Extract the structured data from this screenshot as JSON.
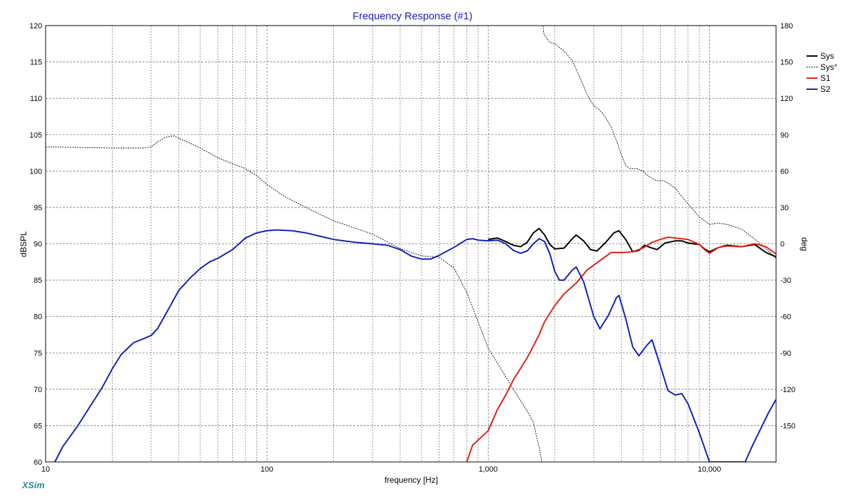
{
  "chart_data": {
    "type": "line",
    "title": "Frequency Response (#1)",
    "xlabel": "frequency [Hz]",
    "ylabel": "dBSPL",
    "y2label": "deg",
    "x_scale": "log",
    "xlim": [
      10,
      20000
    ],
    "ylim": [
      60,
      120
    ],
    "y2lim": [
      -180,
      180
    ],
    "grid": true,
    "legend_position": "top-right",
    "brand": "XSim",
    "x_ticks": [
      {
        "value": 10,
        "label": "10"
      },
      {
        "value": 100,
        "label": "100"
      },
      {
        "value": 1000,
        "label": "1,000"
      },
      {
        "value": 10000,
        "label": "10,000"
      }
    ],
    "y_ticks": [
      {
        "value": 120,
        "label": "120"
      },
      {
        "value": 115,
        "label": "115"
      },
      {
        "value": 110,
        "label": "110"
      },
      {
        "value": 105,
        "label": "105"
      },
      {
        "value": 100,
        "label": "100"
      },
      {
        "value": 95,
        "label": "95"
      },
      {
        "value": 90,
        "label": "90"
      },
      {
        "value": 85,
        "label": "85"
      },
      {
        "value": 80,
        "label": "80"
      },
      {
        "value": 75,
        "label": "75"
      },
      {
        "value": 70,
        "label": "70"
      },
      {
        "value": 65,
        "label": "65"
      },
      {
        "value": 60,
        "label": "60"
      }
    ],
    "y2_ticks": [
      {
        "value": 180,
        "label": "180"
      },
      {
        "value": 150,
        "label": "150"
      },
      {
        "value": 120,
        "label": "120"
      },
      {
        "value": 90,
        "label": "90"
      },
      {
        "value": 60,
        "label": "60"
      },
      {
        "value": 30,
        "label": "30"
      },
      {
        "value": 0,
        "label": "0"
      },
      {
        "value": -30,
        "label": "-30"
      },
      {
        "value": -60,
        "label": "-60"
      },
      {
        "value": -90,
        "label": "-90"
      },
      {
        "value": -120,
        "label": "-120"
      },
      {
        "value": -150,
        "label": "-150"
      }
    ],
    "series": [
      {
        "name": "Sys",
        "color": "#000000",
        "style": "solid",
        "axis": "left",
        "points": [
          [
            1000,
            90.6
          ],
          [
            1100,
            90.8
          ],
          [
            1200,
            90.3
          ],
          [
            1300,
            89.8
          ],
          [
            1400,
            89.6
          ],
          [
            1500,
            90.2
          ],
          [
            1600,
            91.5
          ],
          [
            1700,
            92.1
          ],
          [
            1800,
            91.2
          ],
          [
            1900,
            89.9
          ],
          [
            2000,
            89.3
          ],
          [
            2200,
            89.4
          ],
          [
            2400,
            90.7
          ],
          [
            2500,
            91.2
          ],
          [
            2700,
            90.4
          ],
          [
            2900,
            89.2
          ],
          [
            3100,
            89.0
          ],
          [
            3400,
            90.2
          ],
          [
            3700,
            91.5
          ],
          [
            3900,
            91.8
          ],
          [
            4200,
            90.5
          ],
          [
            4500,
            88.9
          ],
          [
            4800,
            89.1
          ],
          [
            5100,
            89.8
          ],
          [
            5400,
            89.5
          ],
          [
            5800,
            89.2
          ],
          [
            6300,
            90.1
          ],
          [
            7000,
            90.4
          ],
          [
            7500,
            90.4
          ],
          [
            8000,
            90.1
          ],
          [
            9000,
            89.9
          ],
          [
            9500,
            89.3
          ],
          [
            10000,
            88.9
          ],
          [
            11000,
            89.5
          ],
          [
            12000,
            89.8
          ],
          [
            14000,
            89.6
          ],
          [
            16000,
            89.9
          ],
          [
            18000,
            88.8
          ],
          [
            20000,
            88.2
          ]
        ]
      },
      {
        "name": "Sys°",
        "color": "#000000",
        "style": "dashed",
        "axis": "right",
        "points": [
          [
            10,
            80
          ],
          [
            20,
            79
          ],
          [
            28,
            79
          ],
          [
            30,
            80
          ],
          [
            32,
            84
          ],
          [
            35,
            88
          ],
          [
            38,
            89
          ],
          [
            40,
            87
          ],
          [
            45,
            83
          ],
          [
            50,
            79
          ],
          [
            60,
            71
          ],
          [
            70,
            66
          ],
          [
            80,
            62
          ],
          [
            90,
            56
          ],
          [
            100,
            49
          ],
          [
            120,
            39
          ],
          [
            150,
            30
          ],
          [
            200,
            19
          ],
          [
            300,
            8
          ],
          [
            400,
            -4
          ],
          [
            500,
            -10
          ],
          [
            600,
            -11
          ],
          [
            700,
            -20
          ],
          [
            800,
            -40
          ],
          [
            1000,
            -86
          ],
          [
            1300,
            -120
          ],
          [
            1500,
            -138
          ],
          [
            1600,
            -147
          ],
          [
            1650,
            -158
          ],
          [
            1700,
            -168
          ],
          [
            1750,
            -180
          ],
          [
            1770,
            180
          ],
          [
            1780,
            174
          ],
          [
            1800,
            172
          ],
          [
            1900,
            166
          ],
          [
            2000,
            165
          ],
          [
            2200,
            159
          ],
          [
            2400,
            151
          ],
          [
            2600,
            137
          ],
          [
            2800,
            123
          ],
          [
            3000,
            114
          ],
          [
            3200,
            110
          ],
          [
            3400,
            104
          ],
          [
            3600,
            96
          ],
          [
            3800,
            85
          ],
          [
            4000,
            73
          ],
          [
            4200,
            64
          ],
          [
            4400,
            62
          ],
          [
            4700,
            62
          ],
          [
            5000,
            60
          ],
          [
            5200,
            57
          ],
          [
            5500,
            54
          ],
          [
            5800,
            52
          ],
          [
            6200,
            52
          ],
          [
            6500,
            50
          ],
          [
            7000,
            46
          ],
          [
            7500,
            39
          ],
          [
            8000,
            33
          ],
          [
            9000,
            22
          ],
          [
            10000,
            16
          ],
          [
            11000,
            17
          ],
          [
            12000,
            16
          ],
          [
            14000,
            12
          ],
          [
            16000,
            4
          ],
          [
            18000,
            -4
          ],
          [
            20000,
            -12
          ]
        ]
      },
      {
        "name": "S1",
        "color": "#e02010",
        "style": "solid",
        "axis": "left",
        "points": [
          [
            800,
            60.0
          ],
          [
            850,
            62.3
          ],
          [
            900,
            63.0
          ],
          [
            1000,
            64.3
          ],
          [
            1100,
            67.2
          ],
          [
            1200,
            69.2
          ],
          [
            1300,
            71.3
          ],
          [
            1500,
            74.3
          ],
          [
            1700,
            77.5
          ],
          [
            1800,
            79.3
          ],
          [
            2000,
            81.5
          ],
          [
            2200,
            83.1
          ],
          [
            2500,
            84.6
          ],
          [
            2800,
            86.4
          ],
          [
            3200,
            87.7
          ],
          [
            3600,
            88.8
          ],
          [
            4000,
            88.8
          ],
          [
            4500,
            88.9
          ],
          [
            5000,
            89.4
          ],
          [
            5500,
            90.2
          ],
          [
            6000,
            90.6
          ],
          [
            6500,
            90.9
          ],
          [
            7000,
            90.8
          ],
          [
            8000,
            90.6
          ],
          [
            9000,
            89.9
          ],
          [
            9500,
            89.2
          ],
          [
            10000,
            88.7
          ],
          [
            11000,
            89.5
          ],
          [
            12000,
            89.7
          ],
          [
            14000,
            89.6
          ],
          [
            16000,
            90.0
          ],
          [
            18000,
            89.6
          ],
          [
            20000,
            88.6
          ]
        ]
      },
      {
        "name": "S2",
        "color": "#1020b8",
        "style": "solid",
        "axis": "left",
        "points": [
          [
            11,
            60.0
          ],
          [
            12,
            62.2
          ],
          [
            14,
            65.0
          ],
          [
            16,
            67.8
          ],
          [
            18,
            70.2
          ],
          [
            20,
            72.8
          ],
          [
            22,
            74.8
          ],
          [
            25,
            76.4
          ],
          [
            28,
            77.0
          ],
          [
            30,
            77.4
          ],
          [
            32,
            78.3
          ],
          [
            35,
            80.4
          ],
          [
            40,
            83.6
          ],
          [
            45,
            85.3
          ],
          [
            50,
            86.6
          ],
          [
            55,
            87.5
          ],
          [
            60,
            88.0
          ],
          [
            70,
            89.2
          ],
          [
            80,
            90.8
          ],
          [
            90,
            91.5
          ],
          [
            100,
            91.8
          ],
          [
            110,
            91.9
          ],
          [
            130,
            91.8
          ],
          [
            150,
            91.5
          ],
          [
            170,
            91.1
          ],
          [
            200,
            90.6
          ],
          [
            250,
            90.2
          ],
          [
            300,
            90.0
          ],
          [
            350,
            89.8
          ],
          [
            400,
            89.2
          ],
          [
            450,
            88.3
          ],
          [
            500,
            87.9
          ],
          [
            550,
            87.9
          ],
          [
            600,
            88.4
          ],
          [
            700,
            89.5
          ],
          [
            800,
            90.6
          ],
          [
            850,
            90.7
          ],
          [
            900,
            90.5
          ],
          [
            1000,
            90.4
          ],
          [
            1100,
            90.5
          ],
          [
            1200,
            90.0
          ],
          [
            1300,
            89.1
          ],
          [
            1400,
            88.7
          ],
          [
            1500,
            89.0
          ],
          [
            1600,
            90.0
          ],
          [
            1700,
            90.7
          ],
          [
            1800,
            90.3
          ],
          [
            1900,
            88.6
          ],
          [
            2000,
            86.2
          ],
          [
            2100,
            85.0
          ],
          [
            2200,
            85.0
          ],
          [
            2400,
            86.4
          ],
          [
            2500,
            86.8
          ],
          [
            2700,
            84.8
          ],
          [
            3000,
            80.0
          ],
          [
            3200,
            78.3
          ],
          [
            3500,
            80.2
          ],
          [
            3800,
            82.6
          ],
          [
            3900,
            82.9
          ],
          [
            4200,
            79.5
          ],
          [
            4500,
            75.8
          ],
          [
            4800,
            74.6
          ],
          [
            5200,
            76.0
          ],
          [
            5500,
            76.8
          ],
          [
            6000,
            73.2
          ],
          [
            6500,
            69.8
          ],
          [
            7000,
            69.2
          ],
          [
            7500,
            69.4
          ],
          [
            8000,
            68.0
          ],
          [
            9000,
            64.0
          ],
          [
            10000,
            60.0
          ],
          [
            14500,
            60.0
          ],
          [
            15500,
            62.0
          ],
          [
            17000,
            64.5
          ],
          [
            18500,
            66.8
          ],
          [
            20000,
            68.6
          ]
        ]
      }
    ]
  }
}
